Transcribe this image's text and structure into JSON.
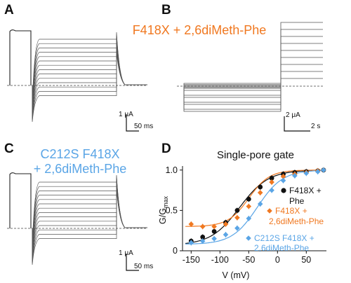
{
  "panels": {
    "A": {
      "label": "A",
      "scale_current": "1 μA",
      "scale_time": "50 ms"
    },
    "B": {
      "label": "B",
      "scale_current": "2 μA",
      "scale_time": "2 s"
    },
    "C": {
      "label": "C",
      "scale_current": "1 μA",
      "scale_time": "50 ms"
    },
    "D": {
      "label": "D"
    }
  },
  "annotation_ab": "F418X + 2,6diMeth-Phe",
  "annotation_c": [
    "C212S F418X",
    "+ 2,6diMeth-Phe"
  ],
  "colors": {
    "orange": "#F07820",
    "blue": "#5AA5E6",
    "black": "#111111",
    "trace": "#555555"
  },
  "chart_data": {
    "type": "scatter",
    "title": "Single-pore gate",
    "xlabel": "V (mV)",
    "ylabel": "G/G",
    "ylabel_sub": "max",
    "xlim": [
      -165,
      85
    ],
    "ylim": [
      0,
      1.05
    ],
    "xticks": [
      -150,
      -100,
      -50,
      0,
      50
    ],
    "yticks": [
      0,
      0.5,
      1.0
    ],
    "ytick_labels": [
      "0",
      "0.5",
      "1.0"
    ],
    "series": [
      {
        "name": "F418X + Phe",
        "legend": [
          "F418X +",
          "Phe"
        ],
        "color": "#111111",
        "marker": "circle",
        "x": [
          -150,
          -130,
          -110,
          -90,
          -70,
          -50,
          -30,
          -10,
          10,
          30,
          50,
          70,
          80
        ],
        "y": [
          0.12,
          0.17,
          0.24,
          0.35,
          0.5,
          0.64,
          0.79,
          0.9,
          0.95,
          0.97,
          0.98,
          0.99,
          1.0
        ],
        "fit": {
          "vhalf": -66,
          "s": 25,
          "min": 0.07
        }
      },
      {
        "name": "F418X + 2,6diMeth-Phe",
        "legend": [
          "F418X +",
          "2,6diMeth-Phe"
        ],
        "color": "#F07820",
        "marker": "diamond",
        "x": [
          -150,
          -130,
          -110,
          -90,
          -70,
          -50,
          -30,
          -10,
          10,
          30,
          50,
          70,
          80
        ],
        "y": [
          0.33,
          0.3,
          0.3,
          0.33,
          0.41,
          0.55,
          0.72,
          0.85,
          0.92,
          0.95,
          0.97,
          0.99,
          1.0
        ],
        "fit": {
          "vhalf": -50,
          "s": 18,
          "min": 0.3
        }
      },
      {
        "name": "C212S F418X + 2,6diMeth-Phe",
        "legend": [
          "C212S F418X +",
          "2,6diMeth-Phe"
        ],
        "color": "#5AA5E6",
        "marker": "diamond",
        "x": [
          -150,
          -130,
          -110,
          -90,
          -70,
          -50,
          -30,
          -10,
          10,
          30,
          50,
          70,
          80
        ],
        "y": [
          0.1,
          0.12,
          0.15,
          0.2,
          0.28,
          0.4,
          0.58,
          0.75,
          0.87,
          0.93,
          0.96,
          0.98,
          1.0
        ],
        "fit": {
          "vhalf": -35,
          "s": 22,
          "min": 0.08
        }
      }
    ]
  }
}
